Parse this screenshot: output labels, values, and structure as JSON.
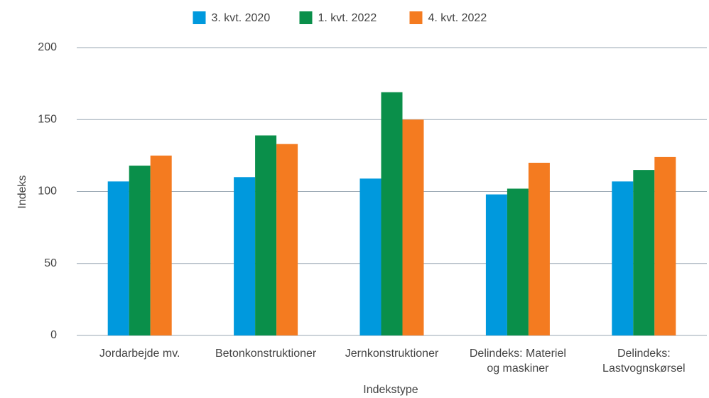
{
  "chart_data": {
    "type": "bar",
    "x_label": "Indekstype",
    "y_label": "Indeks",
    "categories": [
      "Jordarbejde mv.",
      "Betonkonstruktioner",
      "Jernkonstruktioner",
      "Delindeks: Materiel\nog maskiner",
      "Delindeks:\nLastvognskørsel"
    ],
    "series": [
      {
        "name": "3. kvt. 2020",
        "color": "#0099dd",
        "values": [
          107,
          110,
          109,
          98,
          107
        ]
      },
      {
        "name": "1. kvt. 2022",
        "color": "#0a8f4a",
        "values": [
          118,
          139,
          169,
          102,
          115
        ]
      },
      {
        "name": "4. kvt. 2022",
        "color": "#f47b20",
        "values": [
          125,
          133,
          150,
          120,
          124
        ]
      }
    ],
    "ylim": [
      0,
      200
    ],
    "yticks": [
      0,
      50,
      100,
      150,
      200
    ],
    "grid": true,
    "legend": "top"
  }
}
